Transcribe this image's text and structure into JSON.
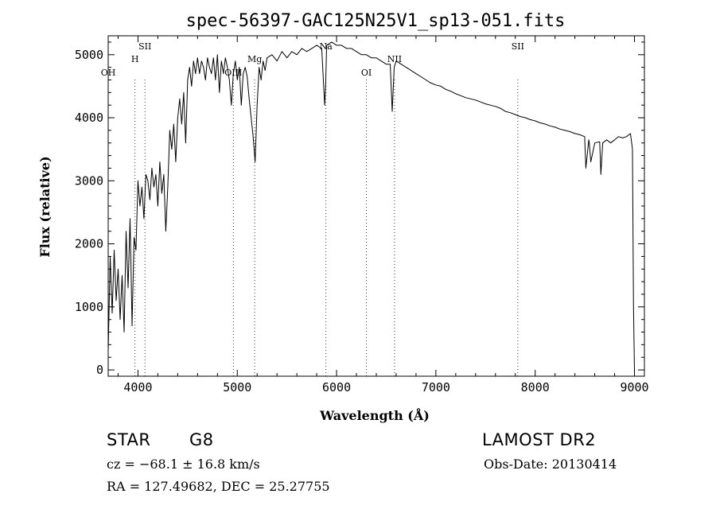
{
  "chart_data": {
    "type": "line",
    "title": "spec-56397-GAC125N25V1_sp13-051.fits",
    "xlabel": "Wavelength (Å)",
    "ylabel": "Flux (relative)",
    "xlim": [
      3700,
      9100
    ],
    "ylim": [
      -100,
      5300
    ],
    "x_ticks": [
      4000,
      5000,
      6000,
      7000,
      8000,
      9000
    ],
    "y_ticks": [
      0,
      1000,
      2000,
      3000,
      4000,
      5000
    ],
    "series": [
      {
        "name": "flux",
        "x": [
          3700,
          3720,
          3740,
          3760,
          3780,
          3800,
          3820,
          3840,
          3860,
          3880,
          3900,
          3920,
          3940,
          3960,
          3980,
          4000,
          4020,
          4040,
          4060,
          4080,
          4100,
          4120,
          4140,
          4160,
          4180,
          4200,
          4220,
          4240,
          4260,
          4280,
          4300,
          4320,
          4340,
          4360,
          4380,
          4400,
          4420,
          4440,
          4460,
          4480,
          4500,
          4520,
          4540,
          4560,
          4580,
          4600,
          4620,
          4640,
          4660,
          4680,
          4700,
          4720,
          4740,
          4760,
          4780,
          4800,
          4820,
          4840,
          4860,
          4880,
          4900,
          4920,
          4940,
          4960,
          4980,
          5000,
          5020,
          5040,
          5060,
          5080,
          5100,
          5120,
          5140,
          5160,
          5180,
          5200,
          5220,
          5240,
          5260,
          5280,
          5300,
          5350,
          5400,
          5450,
          5500,
          5550,
          5600,
          5650,
          5700,
          5750,
          5800,
          5850,
          5880,
          5890,
          5900,
          5950,
          6000,
          6050,
          6100,
          6150,
          6200,
          6250,
          6300,
          6350,
          6400,
          6450,
          6500,
          6540,
          6560,
          6580,
          6600,
          6650,
          6700,
          6750,
          6800,
          6850,
          6900,
          6950,
          7000,
          7050,
          7100,
          7150,
          7200,
          7250,
          7300,
          7350,
          7400,
          7450,
          7500,
          7550,
          7600,
          7650,
          7700,
          7750,
          7800,
          7850,
          7900,
          7950,
          8000,
          8050,
          8100,
          8150,
          8200,
          8250,
          8300,
          8350,
          8400,
          8450,
          8498,
          8510,
          8540,
          8545,
          8560,
          8600,
          8650,
          8662,
          8680,
          8720,
          8760,
          8800,
          8840,
          8880,
          8920,
          8960,
          8980,
          8990,
          9000
        ],
        "y": [
          300,
          1800,
          900,
          1900,
          1100,
          1600,
          800,
          1500,
          600,
          2200,
          1300,
          2400,
          700,
          2100,
          1900,
          3000,
          2600,
          2900,
          2400,
          3100,
          3000,
          2700,
          3200,
          2900,
          3100,
          2600,
          3300,
          2800,
          3100,
          2200,
          2900,
          3800,
          3500,
          3900,
          3300,
          4000,
          4300,
          3900,
          4400,
          3600,
          4600,
          4800,
          4500,
          4900,
          4700,
          4950,
          4700,
          4900,
          4800,
          4600,
          4950,
          4800,
          4700,
          4950,
          4600,
          5000,
          4400,
          4900,
          4700,
          4950,
          4800,
          4600,
          4200,
          4700,
          4900,
          4600,
          4800,
          4200,
          4700,
          4800,
          4650,
          4300,
          4000,
          3700,
          3300,
          4200,
          4800,
          4600,
          4900,
          4750,
          4950,
          5000,
          4900,
          5050,
          4950,
          5050,
          5000,
          5100,
          5050,
          5100,
          5150,
          5100,
          4200,
          4500,
          5150,
          5200,
          5150,
          5150,
          5100,
          5100,
          5050,
          5000,
          5000,
          4950,
          4950,
          4900,
          4850,
          4850,
          4100,
          4800,
          4900,
          4850,
          4800,
          4750,
          4700,
          4650,
          4600,
          4550,
          4520,
          4500,
          4450,
          4420,
          4380,
          4350,
          4320,
          4300,
          4280,
          4250,
          4220,
          4200,
          4180,
          4150,
          4100,
          4080,
          4050,
          4020,
          4000,
          3970,
          3950,
          3920,
          3900,
          3870,
          3850,
          3820,
          3800,
          3780,
          3750,
          3730,
          3700,
          3200,
          3650,
          3600,
          3300,
          3600,
          3620,
          3100,
          3600,
          3650,
          3600,
          3650,
          3700,
          3680,
          3700,
          3750,
          3500,
          1000,
          0
        ]
      }
    ],
    "lines": [
      {
        "label": "OH",
        "x": 3700
      },
      {
        "label": "H",
        "x": 3970
      },
      {
        "label": "SII",
        "x": 4070
      },
      {
        "label": "OIII",
        "x": 4960
      },
      {
        "label": "Mg",
        "x": 5175
      },
      {
        "label": "Na",
        "x": 5893
      },
      {
        "label": "OI",
        "x": 6300
      },
      {
        "label": "NII",
        "x": 6584
      },
      {
        "label": "SII",
        "x": 7825
      }
    ]
  },
  "info": {
    "object_class": "STAR",
    "subclass": "G8",
    "survey": "LAMOST DR2",
    "cz": "cz = −68.1 ± 16.8 km/s",
    "obs_date": "Obs-Date: 20130414",
    "radec": "RA = 127.49682, DEC =  25.27755"
  }
}
